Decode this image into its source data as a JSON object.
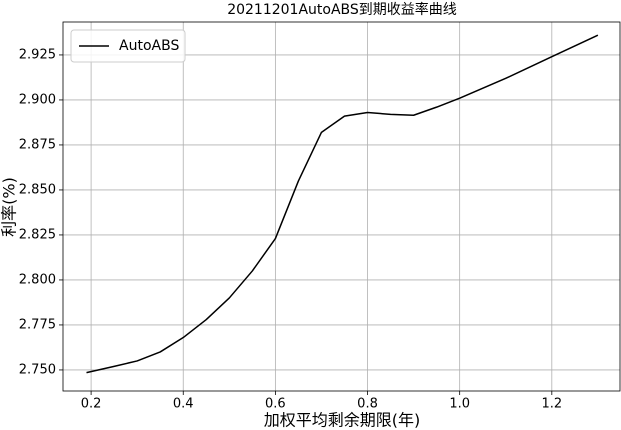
{
  "chart_data": {
    "type": "line",
    "title": "20211201AutoABS到期收益率曲线",
    "x_label": "加权平均剩余期限(年)",
    "y_label": "利率(%)",
    "x": [
      0.19,
      0.25,
      0.3,
      0.35,
      0.4,
      0.45,
      0.5,
      0.55,
      0.6,
      0.65,
      0.7,
      0.75,
      0.8,
      0.85,
      0.9,
      0.95,
      1.0,
      1.1,
      1.2,
      1.3
    ],
    "series": [
      {
        "name": "AutoABS",
        "color": "#000000",
        "values": [
          2.7485,
          2.752,
          2.755,
          2.76,
          2.768,
          2.778,
          2.79,
          2.805,
          2.823,
          2.855,
          2.882,
          2.891,
          2.893,
          2.892,
          2.8915,
          2.896,
          2.901,
          2.912,
          2.924,
          2.936
        ]
      }
    ],
    "xlim": [
      0.139,
      1.348
    ],
    "ylim": [
      2.7383,
      2.9433
    ],
    "xticks": [
      0.2,
      0.4,
      0.6,
      0.8,
      {
        "value": 1.0,
        "label": "1.0"
      },
      1.2
    ],
    "yticks": [
      {
        "value": 2.75,
        "label": "2.750"
      },
      2.775,
      {
        "value": 2.8,
        "label": "2.800"
      },
      2.825,
      {
        "value": 2.85,
        "label": "2.850"
      },
      2.875,
      {
        "value": 2.9,
        "label": "2.900"
      },
      2.925
    ],
    "grid": true,
    "legend": "upper left"
  }
}
